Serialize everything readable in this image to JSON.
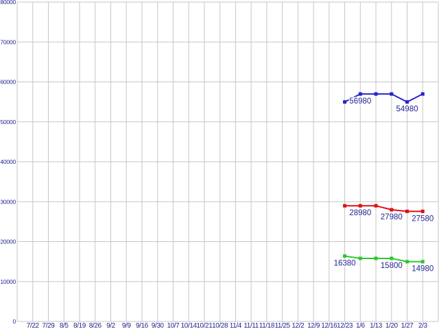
{
  "chart_style": {
    "background": "#ffffff",
    "grid_color": "#c6c6c6",
    "tick_color": "#1f1f8f",
    "point_label_color": "#1f1f8f"
  },
  "chart_data": {
    "type": "line",
    "title": "",
    "xlabel": "",
    "ylabel": "",
    "ylim": [
      0,
      80000
    ],
    "grid": true,
    "legend": "none",
    "y_ticks": [
      0,
      10000,
      20000,
      30000,
      40000,
      50000,
      60000,
      70000,
      80000
    ],
    "x_labels": [
      "7/22",
      "7/29",
      "8/5",
      "8/19",
      "8/26",
      "9/2",
      "9/9",
      "9/16",
      "9/30",
      "10/7",
      "10/14",
      "10/21",
      "10/28",
      "11/4",
      "11/11",
      "11/18",
      "11/25",
      "12/2",
      "12/9",
      "12/16",
      "12/23",
      "1/6",
      "1/13",
      "1/20",
      "1/27",
      "2/3"
    ],
    "series": [
      {
        "name": "blue",
        "color": "#2323cd",
        "start_index": 20,
        "x": [
          "12/23",
          "1/6",
          "1/13",
          "1/20",
          "1/27",
          "2/3"
        ],
        "values": [
          54980,
          56980,
          56980,
          56980,
          54980,
          56980
        ]
      },
      {
        "name": "red",
        "color": "#dd1111",
        "start_index": 20,
        "x": [
          "12/23",
          "1/6",
          "1/13",
          "1/20",
          "1/27",
          "2/3"
        ],
        "values": [
          28980,
          28980,
          28980,
          27980,
          27580,
          27580
        ]
      },
      {
        "name": "green",
        "color": "#2dc82d",
        "start_index": 20,
        "x": [
          "12/23",
          "1/6",
          "1/13",
          "1/20",
          "1/27",
          "2/3"
        ],
        "values": [
          16380,
          15800,
          15800,
          15800,
          14980,
          14980
        ]
      }
    ],
    "annotations": [
      {
        "text": "56980",
        "x_index": 21,
        "value": 56980,
        "series": "blue"
      },
      {
        "text": "54980",
        "x_index": 24,
        "value": 54980,
        "series": "blue"
      },
      {
        "text": "28980",
        "x_index": 21,
        "value": 28980,
        "series": "red"
      },
      {
        "text": "27980",
        "x_index": 23,
        "value": 27980,
        "series": "red"
      },
      {
        "text": "27580",
        "x_index": 25,
        "value": 27580,
        "series": "red"
      },
      {
        "text": "16380",
        "x_index": 20,
        "value": 16380,
        "series": "green"
      },
      {
        "text": "15800",
        "x_index": 23,
        "value": 15800,
        "series": "green"
      },
      {
        "text": "14980",
        "x_index": 25,
        "value": 14980,
        "series": "green"
      }
    ]
  }
}
